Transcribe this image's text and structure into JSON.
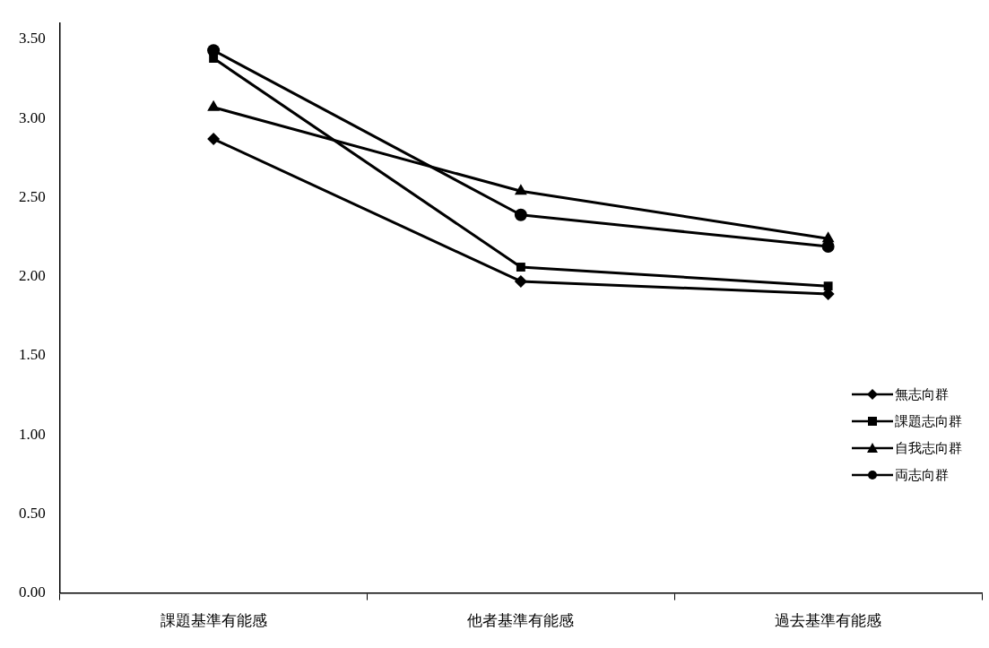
{
  "chart_data": {
    "type": "line",
    "categories": [
      "課題基準有能感",
      "他者基準有能感",
      "過去基準有能感"
    ],
    "series": [
      {
        "name": "無志向群",
        "color": "#000000",
        "marker": "diamond",
        "values": [
          2.87,
          1.97,
          1.89
        ]
      },
      {
        "name": "課題志向群",
        "color": "#000000",
        "marker": "square",
        "values": [
          3.38,
          2.06,
          1.94
        ]
      },
      {
        "name": "自我志向群",
        "color": "#000000",
        "marker": "triangle",
        "values": [
          3.07,
          2.54,
          2.24
        ]
      },
      {
        "name": "両志向群",
        "color": "#000000",
        "marker": "circle",
        "values": [
          3.43,
          2.39,
          2.19
        ]
      }
    ],
    "ylim": [
      0,
      3.6
    ],
    "yticks": [
      {
        "value": 0,
        "label": "0.00"
      },
      {
        "value": 0.5,
        "label": "0.50"
      },
      {
        "value": 1,
        "label": "1.00"
      },
      {
        "value": 1.5,
        "label": "1.50"
      },
      {
        "value": 2,
        "label": "2.00"
      },
      {
        "value": 2.5,
        "label": "2.50"
      },
      {
        "value": 3,
        "label": "3.00"
      },
      {
        "value": 3.5,
        "label": "3.50"
      }
    ],
    "grid": false,
    "legend": "right",
    "line_style": "solid"
  }
}
